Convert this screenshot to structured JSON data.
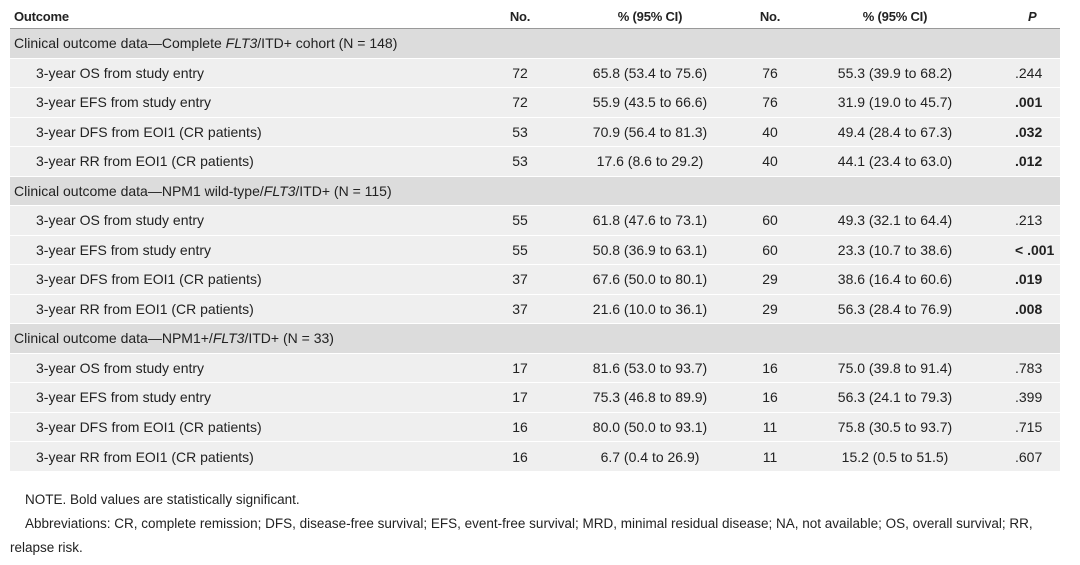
{
  "table": {
    "header": [
      "Outcome",
      "No.",
      "% (95% CI)",
      "No.",
      "% (95% CI)",
      "P"
    ],
    "sections": [
      {
        "title": [
          "Clinical outcome data—Complete ",
          "FLT3",
          "/ITD+ cohort (N = 148)"
        ],
        "rows": [
          {
            "outcome": "3-year OS from study entry",
            "n1": "72",
            "ci1": "65.8 (53.4 to 75.6)",
            "n2": "76",
            "ci2": "55.3 (39.9 to 68.2)",
            "p": ".244",
            "p_bold": false
          },
          {
            "outcome": "3-year EFS from study entry",
            "n1": "72",
            "ci1": "55.9 (43.5 to 66.6)",
            "n2": "76",
            "ci2": "31.9 (19.0 to 45.7)",
            "p": ".001",
            "p_bold": true
          },
          {
            "outcome": "3-year DFS from EOI1 (CR patients)",
            "n1": "53",
            "ci1": "70.9 (56.4 to 81.3)",
            "n2": "40",
            "ci2": "49.4 (28.4 to 67.3)",
            "p": ".032",
            "p_bold": true
          },
          {
            "outcome": "3-year RR from EOI1 (CR patients)",
            "n1": "53",
            "ci1": "17.6 (8.6 to 29.2)",
            "n2": "40",
            "ci2": "44.1 (23.4 to 63.0)",
            "p": ".012",
            "p_bold": true
          }
        ]
      },
      {
        "title": [
          "Clinical outcome data—NPM1 wild-type/",
          "FLT3",
          "/ITD+ (N = 115)"
        ],
        "rows": [
          {
            "outcome": "3-year OS from study entry",
            "n1": "55",
            "ci1": "61.8 (47.6 to 73.1)",
            "n2": "60",
            "ci2": "49.3 (32.1 to 64.4)",
            "p": ".213",
            "p_bold": false
          },
          {
            "outcome": "3-year EFS from study entry",
            "n1": "55",
            "ci1": "50.8 (36.9 to 63.1)",
            "n2": "60",
            "ci2": "23.3 (10.7 to 38.6)",
            "p": "< .001",
            "p_bold": true
          },
          {
            "outcome": "3-year DFS from EOI1 (CR patients)",
            "n1": "37",
            "ci1": "67.6 (50.0 to 80.1)",
            "n2": "29",
            "ci2": "38.6 (16.4 to 60.6)",
            "p": ".019",
            "p_bold": true
          },
          {
            "outcome": "3-year RR from EOI1 (CR patients)",
            "n1": "37",
            "ci1": "21.6 (10.0 to 36.1)",
            "n2": "29",
            "ci2": "56.3 (28.4 to 76.9)",
            "p": ".008",
            "p_bold": true
          }
        ]
      },
      {
        "title": [
          "Clinical outcome data—NPM1+/",
          "FLT3",
          "/ITD+ (N = 33)"
        ],
        "rows": [
          {
            "outcome": "3-year OS from study entry",
            "n1": "17",
            "ci1": "81.6 (53.0 to 93.7)",
            "n2": "16",
            "ci2": "75.0 (39.8 to 91.4)",
            "p": ".783",
            "p_bold": false
          },
          {
            "outcome": "3-year EFS from study entry",
            "n1": "17",
            "ci1": "75.3 (46.8 to 89.9)",
            "n2": "16",
            "ci2": "56.3 (24.1 to 79.3)",
            "p": ".399",
            "p_bold": false
          },
          {
            "outcome": "3-year DFS from EOI1 (CR patients)",
            "n1": "16",
            "ci1": "80.0 (50.0 to 93.1)",
            "n2": "11",
            "ci2": "75.8 (30.5 to 93.7)",
            "p": ".715",
            "p_bold": false
          },
          {
            "outcome": "3-year RR from EOI1 (CR patients)",
            "n1": "16",
            "ci1": "6.7 (0.4 to 26.9)",
            "n2": "11",
            "ci2": "15.2 (0.5 to 51.5)",
            "p": ".607",
            "p_bold": false
          }
        ]
      }
    ]
  },
  "notes": [
    "NOTE. Bold values are statistically significant.",
    "Abbreviations: CR, complete remission; DFS, disease-free survival; EFS, event-free survival; MRD, minimal residual disease; NA, not available; OS, overall survival; RR, relapse risk."
  ]
}
